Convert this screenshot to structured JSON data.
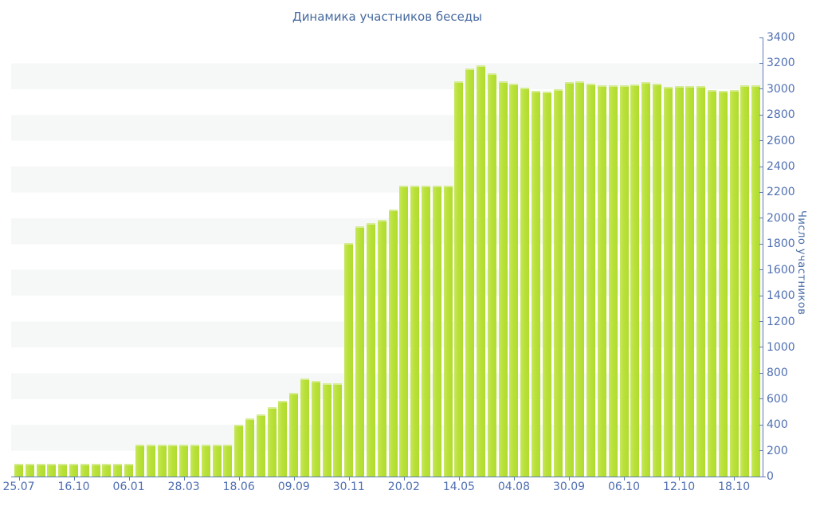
{
  "title": "Динамика участников беседы",
  "colors": {
    "bar_fill": "#b9e138",
    "bar_highlight": "#d5ec92",
    "axis_line": "#5c7cba",
    "tick_label": "#4f6fb2",
    "title_text": "#46699f",
    "stripe_gray": "#f6f7f7",
    "background": "#ffffff"
  },
  "chart_data": {
    "type": "bar",
    "title": "Динамика участников беседы",
    "xlabel": "",
    "ylabel": "Число участников",
    "ylim": [
      0,
      3400
    ],
    "ytick_step": 200,
    "y_tick_labels": [
      "0",
      "200",
      "400",
      "600",
      "800",
      "1000",
      "1200",
      "1400",
      "1600",
      "1800",
      "2000",
      "2200",
      "2400",
      "2600",
      "2800",
      "3000",
      "3200",
      "3400"
    ],
    "y_axis_side": "right",
    "grid": "alternating horizontal 200-unit bands, light gray on white",
    "legend_position": "none",
    "x_tick_labels": [
      "25.07",
      "16.10",
      "06.01",
      "28.03",
      "18.06",
      "09.09",
      "30.11",
      "20.02",
      "14.05",
      "04.08",
      "30.09",
      "06.10",
      "12.10",
      "18.10"
    ],
    "x_tick_every_n_bars": 5,
    "values": [
      100,
      100,
      100,
      100,
      100,
      100,
      100,
      100,
      100,
      100,
      100,
      250,
      250,
      250,
      250,
      250,
      250,
      250,
      250,
      250,
      400,
      450,
      480,
      535,
      585,
      650,
      760,
      740,
      720,
      720,
      1810,
      1940,
      1965,
      1990,
      2070,
      2250,
      2250,
      2250,
      2250,
      2250,
      3060,
      3160,
      3185,
      3125,
      3060,
      3040,
      3010,
      2985,
      2980,
      3000,
      3055,
      3060,
      3040,
      3030,
      3030,
      3030,
      3035,
      3055,
      3040,
      3015,
      3025,
      3025,
      3025,
      2990,
      2985,
      2990,
      3030,
      3030
    ]
  }
}
